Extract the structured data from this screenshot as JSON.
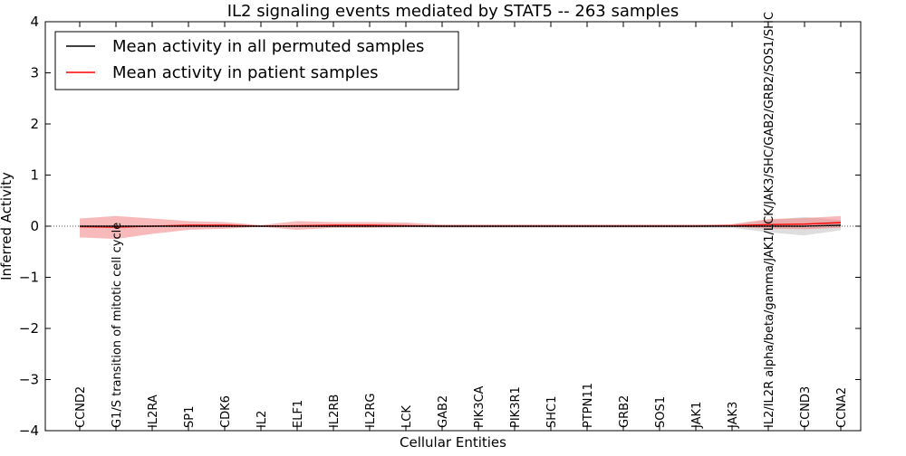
{
  "chart_data": {
    "type": "line",
    "title": "IL2 signaling events mediated by STAT5 -- 263 samples",
    "xlabel": "Cellular Entities",
    "ylabel": "Inferred Activity",
    "ylim": [
      -4,
      4
    ],
    "yticks": [
      -4,
      -3,
      -2,
      -1,
      0,
      1,
      2,
      3,
      4
    ],
    "ytick_labels": [
      "−4",
      "−3",
      "−2",
      "−1",
      "0",
      "1",
      "2",
      "3",
      "4"
    ],
    "grid": false,
    "legend_position": "top-left",
    "categories": [
      "CCND2",
      "G1/S transition of mitotic cell cycle",
      "IL2RA",
      "SP1",
      "CDK6",
      "IL2",
      "ELF1",
      "IL2RB",
      "IL2RG",
      "LCK",
      "GAB2",
      "PIK3CA",
      "PIK3R1",
      "SHC1",
      "PTPN11",
      "GRB2",
      "SOS1",
      "JAK1",
      "JAK3",
      "IL2/IL2R alpha/beta/gamma/JAK1/LCK/JAK3/SHC/GAB2/GRB2/SOS1/SHC",
      "CCND3",
      "CCNA2"
    ],
    "series": [
      {
        "name": "Mean activity in all permuted samples",
        "color": "#000000",
        "band_color": "#c8c8c8",
        "values": [
          0,
          0,
          0,
          0,
          0,
          0,
          0,
          0,
          0,
          0,
          0,
          0,
          0,
          0,
          0,
          0,
          0,
          0,
          0,
          0,
          0,
          0.02
        ],
        "band_lower": [
          -0.02,
          -0.02,
          -0.01,
          -0.01,
          -0.01,
          -0.01,
          -0.01,
          -0.02,
          -0.02,
          -0.02,
          -0.03,
          -0.03,
          -0.03,
          -0.03,
          -0.03,
          -0.03,
          -0.03,
          -0.03,
          -0.03,
          -0.12,
          -0.18,
          -0.08
        ],
        "band_upper": [
          0.02,
          0.02,
          0.01,
          0.01,
          0.01,
          0.01,
          0.01,
          0.02,
          0.02,
          0.02,
          0.03,
          0.03,
          0.03,
          0.03,
          0.03,
          0.03,
          0.03,
          0.03,
          0.03,
          0.12,
          0.18,
          0.12
        ]
      },
      {
        "name": "Mean activity in patient samples",
        "color": "#ff0000",
        "band_color": "#f08080",
        "values": [
          -0.01,
          -0.02,
          0,
          0.02,
          0.02,
          0,
          0.01,
          0.02,
          0.02,
          0.01,
          0,
          0,
          0,
          0,
          0,
          0,
          0,
          0,
          0.01,
          0.03,
          0.04,
          0.07
        ],
        "band_lower": [
          -0.22,
          -0.25,
          -0.15,
          -0.07,
          -0.05,
          -0.01,
          -0.07,
          -0.03,
          -0.03,
          -0.02,
          -0.01,
          -0.01,
          -0.01,
          -0.01,
          -0.01,
          -0.01,
          -0.01,
          -0.01,
          -0.01,
          -0.05,
          -0.06,
          -0.03
        ],
        "band_upper": [
          0.15,
          0.2,
          0.15,
          0.1,
          0.08,
          0.02,
          0.1,
          0.08,
          0.08,
          0.07,
          0.03,
          0.03,
          0.03,
          0.03,
          0.03,
          0.03,
          0.03,
          0.03,
          0.04,
          0.14,
          0.16,
          0.2
        ]
      }
    ]
  }
}
